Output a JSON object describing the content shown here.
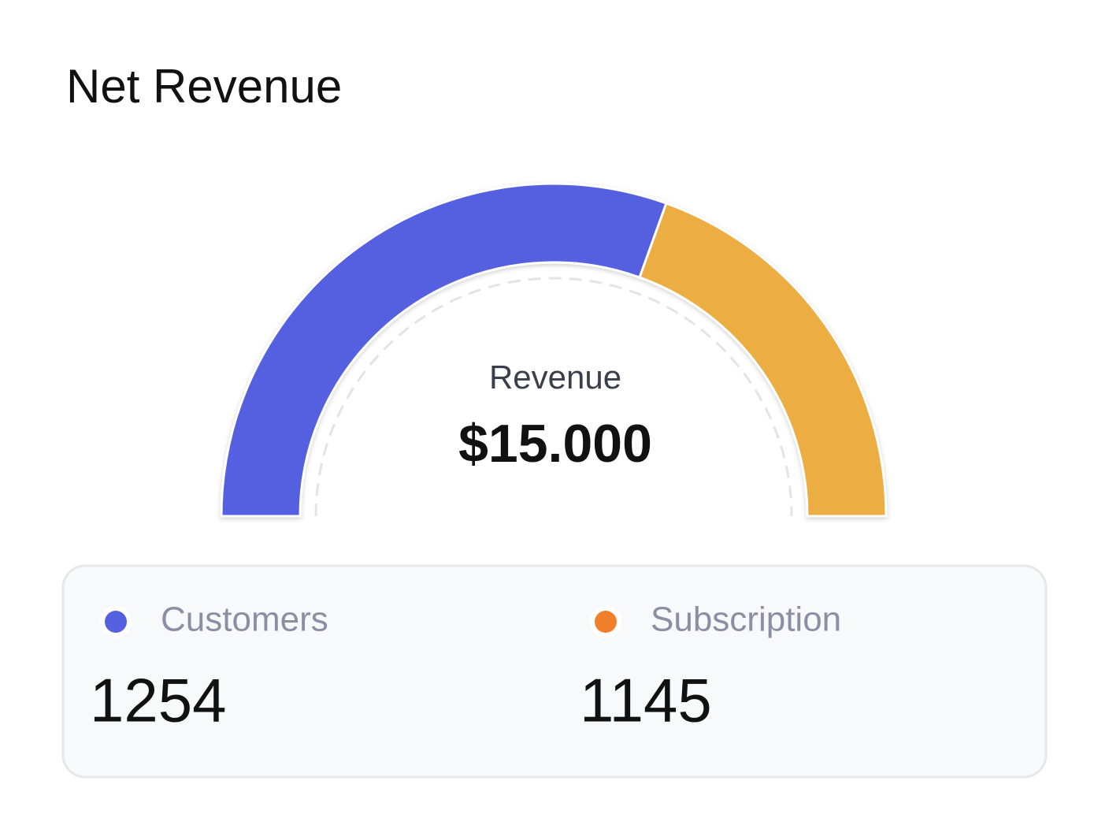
{
  "title": "Net Revenue",
  "chart_data": {
    "type": "semi-donut",
    "center_label": "Revenue",
    "center_value": "$15.000",
    "values": [
      61,
      39
    ],
    "colors": [
      "#5561e1",
      "#ecad42"
    ]
  },
  "legend": {
    "items": [
      {
        "label": "Customers",
        "value": 1254,
        "color": "#5561e1"
      },
      {
        "label": "Subscription",
        "value": 1145,
        "color": "#f07f2c"
      }
    ]
  }
}
